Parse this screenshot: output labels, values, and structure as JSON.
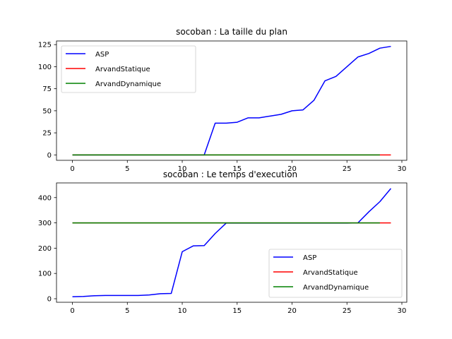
{
  "chart_data": [
    {
      "type": "line",
      "title": "socoban : La taille du plan",
      "xlabel": "",
      "ylabel": "",
      "xlim": [
        -1.45,
        30.45
      ],
      "ylim": [
        -6.15,
        129.15
      ],
      "xticks": [
        0,
        5,
        10,
        15,
        20,
        25,
        30
      ],
      "yticks": [
        0,
        25,
        50,
        75,
        100,
        125
      ],
      "legend_position": "top-left",
      "grid": false,
      "series": [
        {
          "name": "ASP",
          "color": "#0000ff",
          "x": [
            0,
            1,
            2,
            3,
            4,
            5,
            6,
            7,
            8,
            9,
            10,
            11,
            12,
            13,
            14,
            15,
            16,
            17,
            18,
            19,
            20,
            21,
            22,
            23,
            24,
            25,
            26,
            27,
            28,
            29
          ],
          "y": [
            0,
            0,
            0,
            0,
            0,
            0,
            0,
            0,
            0,
            0,
            0,
            0,
            0,
            36,
            36,
            37,
            42,
            42,
            44,
            46,
            50,
            51,
            62,
            84,
            89,
            100,
            111,
            115,
            121,
            123
          ]
        },
        {
          "name": "ArvandStatique",
          "color": "#ff0000",
          "x": [
            0,
            1,
            2,
            3,
            4,
            5,
            6,
            7,
            8,
            9,
            10,
            11,
            12,
            13,
            14,
            15,
            16,
            17,
            18,
            19,
            20,
            21,
            22,
            23,
            24,
            25,
            26,
            27,
            28,
            29
          ],
          "y": [
            0,
            0,
            0,
            0,
            0,
            0,
            0,
            0,
            0,
            0,
            0,
            0,
            0,
            0,
            0,
            0,
            0,
            0,
            0,
            0,
            0,
            0,
            0,
            0,
            0,
            0,
            0,
            0,
            0,
            0
          ]
        },
        {
          "name": "ArvandDynamique",
          "color": "#008000",
          "x": [
            0,
            1,
            2,
            3,
            4,
            5,
            6,
            7,
            8,
            9,
            10,
            11,
            12,
            13,
            14,
            15,
            16,
            17,
            18,
            19,
            20,
            21,
            22,
            23,
            24,
            25,
            26,
            27,
            28
          ],
          "y": [
            0,
            0,
            0,
            0,
            0,
            0,
            0,
            0,
            0,
            0,
            0,
            0,
            0,
            0,
            0,
            0,
            0,
            0,
            0,
            0,
            0,
            0,
            0,
            0,
            0,
            0,
            0,
            0,
            0
          ]
        }
      ]
    },
    {
      "type": "line",
      "title": "socoban : Le temps d'execution",
      "xlabel": "",
      "ylabel": "",
      "xlim": [
        -1.45,
        30.45
      ],
      "ylim": [
        -14,
        458
      ],
      "xticks": [
        0,
        5,
        10,
        15,
        20,
        25,
        30
      ],
      "yticks": [
        0,
        100,
        200,
        300,
        400
      ],
      "legend_position": "bottom-right",
      "grid": false,
      "series": [
        {
          "name": "ASP",
          "color": "#0000ff",
          "x": [
            0,
            1,
            2,
            3,
            4,
            5,
            6,
            7,
            8,
            9,
            10,
            11,
            12,
            13,
            14,
            15,
            16,
            17,
            18,
            19,
            20,
            21,
            22,
            23,
            24,
            25,
            26,
            27,
            28,
            29
          ],
          "y": [
            8,
            9,
            12,
            13,
            13,
            13,
            13,
            15,
            20,
            21,
            186,
            209,
            210,
            258,
            299,
            299,
            299,
            299,
            299,
            299,
            299,
            299,
            299,
            299,
            299,
            299,
            300,
            344,
            384,
            436
          ]
        },
        {
          "name": "ArvandStatique",
          "color": "#ff0000",
          "x": [
            0,
            1,
            2,
            3,
            4,
            5,
            6,
            7,
            8,
            9,
            10,
            11,
            12,
            13,
            14,
            15,
            16,
            17,
            18,
            19,
            20,
            21,
            22,
            23,
            24,
            25,
            26,
            27,
            28,
            29
          ],
          "y": [
            300,
            300,
            300,
            300,
            300,
            300,
            300,
            300,
            300,
            300,
            300,
            300,
            300,
            300,
            300,
            300,
            300,
            300,
            300,
            300,
            300,
            300,
            300,
            300,
            300,
            300,
            300,
            300,
            300,
            300
          ]
        },
        {
          "name": "ArvandDynamique",
          "color": "#008000",
          "x": [
            0,
            1,
            2,
            3,
            4,
            5,
            6,
            7,
            8,
            9,
            10,
            11,
            12,
            13,
            14,
            15,
            16,
            17,
            18,
            19,
            20,
            21,
            22,
            23,
            24,
            25,
            26,
            27,
            28
          ],
          "y": [
            300,
            300,
            300,
            300,
            300,
            300,
            300,
            300,
            300,
            300,
            300,
            300,
            300,
            300,
            300,
            300,
            300,
            300,
            300,
            300,
            300,
            300,
            300,
            300,
            300,
            300,
            300,
            300,
            300
          ]
        }
      ]
    }
  ]
}
